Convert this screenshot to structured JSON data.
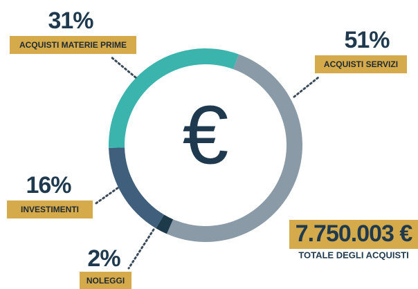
{
  "chart_data": {
    "type": "donut",
    "center_label": "€",
    "categories": [
      "ACQUISTI SERVIZI",
      "NOLEGGI",
      "INVESTIMENTI",
      "ACQUISTI MATERIE PRIME"
    ],
    "values": [
      51,
      2,
      16,
      31
    ],
    "value_labels": [
      "51%",
      "2%",
      "16%",
      "31%"
    ],
    "colors": [
      "#8b9aa7",
      "#1d3a4a",
      "#3f5f7c",
      "#3ab4ac"
    ],
    "total_label": "7.750.003 €",
    "total_caption": "TOTALE DEGLI ACQUISTI"
  }
}
